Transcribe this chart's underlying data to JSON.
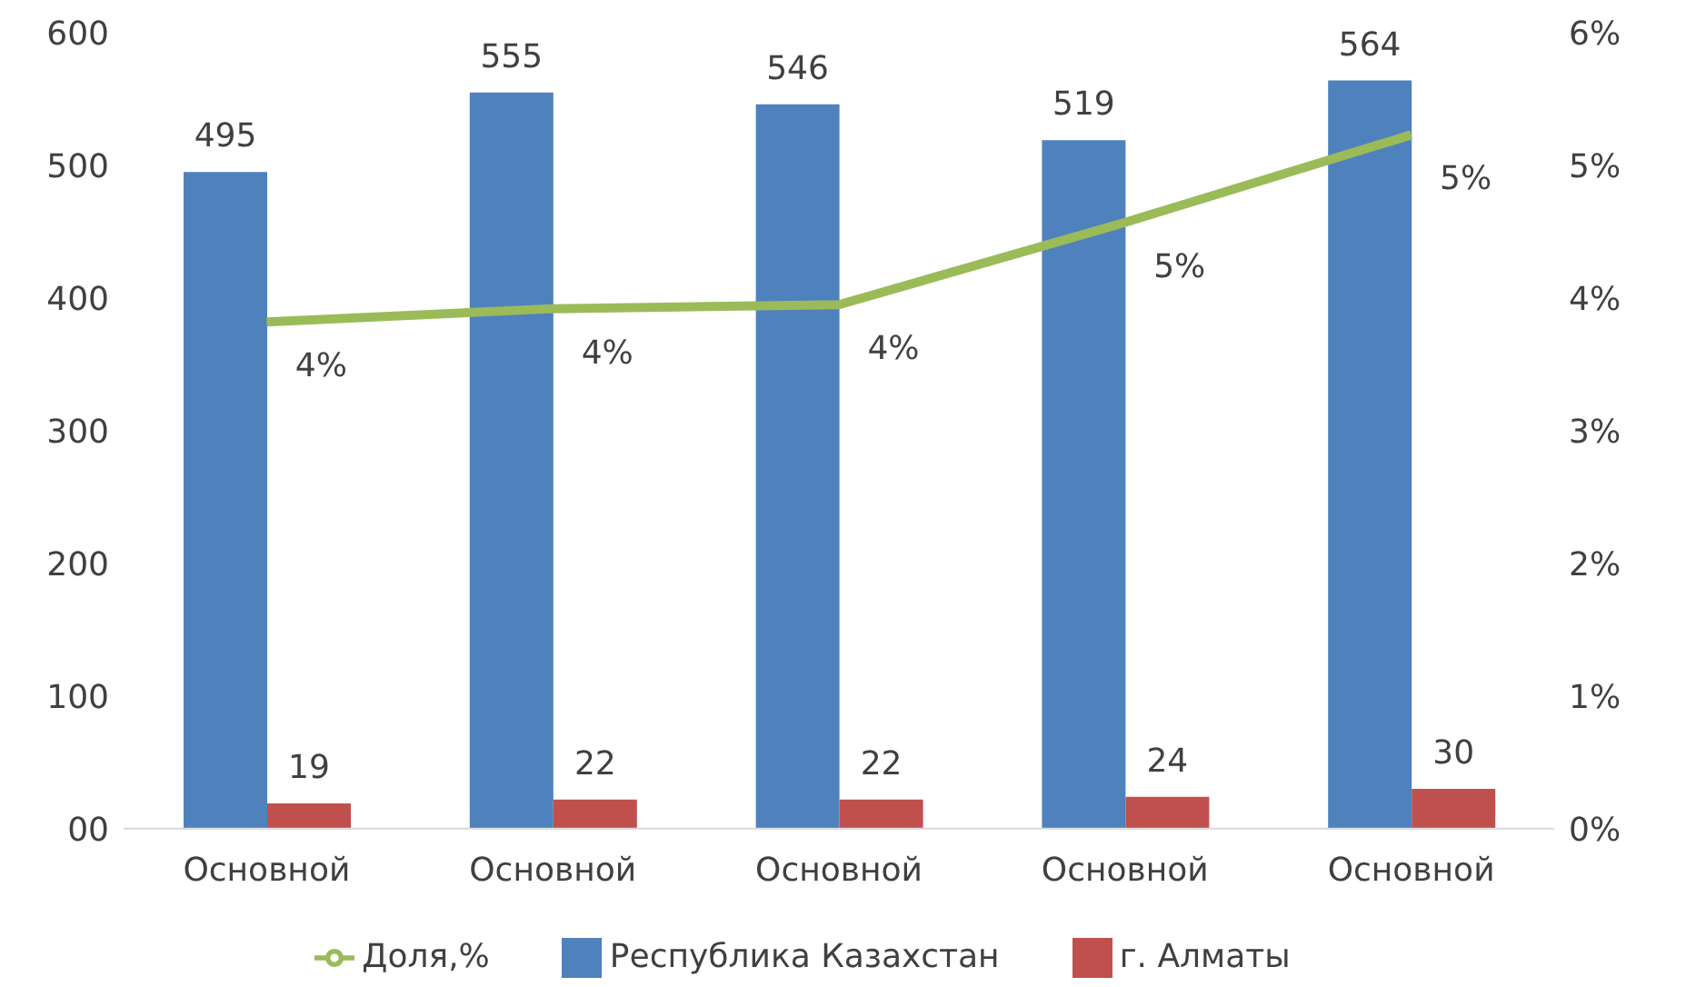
{
  "chart_data": {
    "type": "bar",
    "categories": [
      "Основной",
      "Основной",
      "Основной",
      "Основной",
      "Основной"
    ],
    "series": [
      {
        "name": "Республика Казахстан",
        "color": "#4f81bd",
        "values": [
          495,
          555,
          546,
          519,
          564
        ]
      },
      {
        "name": "г. Алматы",
        "color": "#c0504d",
        "values": [
          19,
          22,
          22,
          24,
          30
        ]
      },
      {
        "name": "Доля,%",
        "type": "line",
        "axis": "y2",
        "color": "#9bbb59",
        "values": [
          3.82,
          3.92,
          3.95,
          4.57,
          5.23
        ],
        "value_labels": [
          "4%",
          "4%",
          "4%",
          "5%",
          "5%"
        ]
      }
    ],
    "data_labels": true,
    "ylim": [
      0,
      600
    ],
    "yticks": [
      {
        "value": 0,
        "label": "00"
      },
      100,
      200,
      300,
      400,
      500,
      600
    ],
    "y2lim": [
      0,
      6
    ],
    "y2ticks": [
      {
        "value": 0,
        "label": "0%"
      },
      {
        "value": 1,
        "label": "1%"
      },
      {
        "value": 2,
        "label": "2%"
      },
      {
        "value": 3,
        "label": "3%"
      },
      {
        "value": 4,
        "label": "4%"
      },
      {
        "value": 5,
        "label": "5%"
      },
      {
        "value": 6,
        "label": "6%"
      }
    ],
    "grid": false,
    "legend": "bottom",
    "marker": "none",
    "line_style": "solid"
  }
}
